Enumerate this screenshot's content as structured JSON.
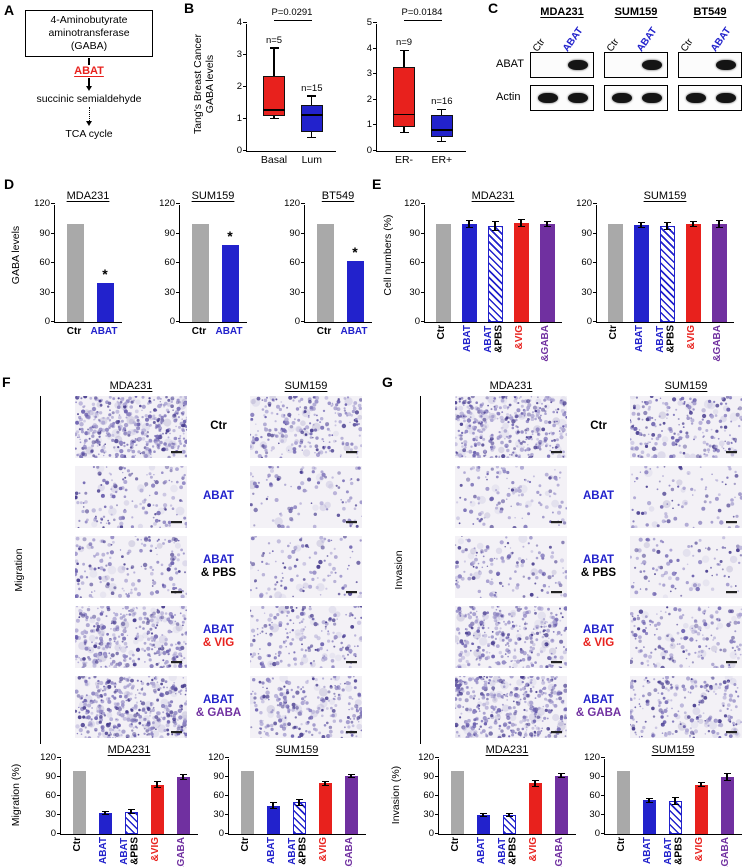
{
  "colors": {
    "gray": "#a9a9a9",
    "blue": "#2222cc",
    "red": "#e8211d",
    "purple": "#7030a0",
    "black": "#000000",
    "band": "#141414"
  },
  "panels": {
    "A": {
      "label": "A",
      "box_lines": [
        "4-Aminobutyrate",
        "aminotransferase",
        "(GABA)"
      ],
      "enzyme": "ABAT",
      "intermediate": "succinic semialdehyde",
      "terminal": "TCA cycle"
    },
    "B": {
      "label": "B",
      "ylabel_line1": "Tang's Breast Cancer",
      "ylabel_line2": "GABA levels"
    },
    "C": {
      "label": "C",
      "cell_lines": [
        "MDA231",
        "SUM159",
        "BT549"
      ],
      "lane_labels": [
        "Ctr",
        "ABAT"
      ],
      "row_labels": [
        "ABAT",
        "Actin"
      ],
      "abat_bands": [
        [
          false,
          true
        ],
        [
          false,
          true
        ],
        [
          false,
          true
        ]
      ],
      "actin_bands": [
        [
          true,
          true
        ],
        [
          true,
          true
        ],
        [
          true,
          true
        ]
      ]
    },
    "D": {
      "label": "D",
      "ylabel": "GABA levels"
    },
    "E": {
      "label": "E",
      "ylabel": "Cell numbers (%)"
    },
    "F": {
      "label": "F",
      "side_label": "Migration",
      "ylabel": "Migration (%)",
      "col_headers": [
        "MDA231",
        "SUM159"
      ],
      "rows": [
        {
          "lines": [
            [
              {
                "t": "Ctr",
                "c": "black"
              }
            ]
          ],
          "densities": [
            420,
            230
          ]
        },
        {
          "lines": [
            [
              {
                "t": "ABAT",
                "c": "blue"
              }
            ]
          ],
          "densities": [
            150,
            100
          ]
        },
        {
          "lines": [
            [
              {
                "t": "ABAT",
                "c": "blue"
              }
            ],
            [
              {
                "t": "& PBS",
                "c": "black"
              }
            ]
          ],
          "densities": [
            160,
            110
          ]
        },
        {
          "lines": [
            [
              {
                "t": "ABAT",
                "c": "blue"
              }
            ],
            [
              {
                "t": "& VIG",
                "c": "red"
              }
            ]
          ],
          "densities": [
            330,
            190
          ]
        },
        {
          "lines": [
            [
              {
                "t": "ABAT",
                "c": "blue"
              }
            ],
            [
              {
                "t": "& GABA",
                "c": "purple"
              }
            ]
          ],
          "densities": [
            400,
            230
          ]
        }
      ]
    },
    "G": {
      "label": "G",
      "side_label": "Invasion",
      "ylabel": "Invasion (%)",
      "col_headers": [
        "MDA231",
        "SUM159"
      ],
      "rows": [
        {
          "lines": [
            [
              {
                "t": "Ctr",
                "c": "black"
              }
            ]
          ],
          "densities": [
            380,
            210
          ]
        },
        {
          "lines": [
            [
              {
                "t": "ABAT",
                "c": "blue"
              }
            ]
          ],
          "densities": [
            120,
            90
          ]
        },
        {
          "lines": [
            [
              {
                "t": "ABAT",
                "c": "blue"
              }
            ],
            [
              {
                "t": "& PBS",
                "c": "black"
              }
            ]
          ],
          "densities": [
            130,
            100
          ]
        },
        {
          "lines": [
            [
              {
                "t": "ABAT",
                "c": "blue"
              }
            ],
            [
              {
                "t": "& VIG",
                "c": "red"
              }
            ]
          ],
          "densities": [
            310,
            170
          ]
        },
        {
          "lines": [
            [
              {
                "t": "ABAT",
                "c": "blue"
              }
            ],
            [
              {
                "t": "& GABA",
                "c": "purple"
              }
            ]
          ],
          "densities": [
            370,
            210
          ]
        }
      ]
    }
  },
  "category_sets": {
    "cat2": [
      {
        "lines": [
          [
            {
              "t": "Ctr",
              "c": "black"
            }
          ]
        ]
      },
      {
        "lines": [
          [
            {
              "t": "ABAT",
              "c": "blue"
            }
          ]
        ]
      }
    ],
    "cat5": [
      {
        "lines": [
          [
            {
              "t": "Ctr",
              "c": "black"
            }
          ]
        ]
      },
      {
        "lines": [
          [
            {
              "t": "ABAT",
              "c": "blue"
            }
          ]
        ]
      },
      {
        "lines": [
          [
            {
              "t": "ABAT",
              "c": "blue"
            }
          ],
          [
            {
              "t": "&PBS",
              "c": "black"
            }
          ]
        ]
      },
      {
        "lines": [
          [
            {
              "t": "&VIG",
              "c": "red"
            }
          ]
        ]
      },
      {
        "lines": [
          [
            {
              "t": "&GABA",
              "c": "purple"
            }
          ]
        ]
      }
    ]
  },
  "chart_data": [
    {
      "id": "B_basal_lum",
      "type": "box",
      "p_label": "P=0.0291",
      "ylim": [
        0,
        4
      ],
      "yticks": [
        0,
        1,
        2,
        3,
        4
      ],
      "groups": [
        {
          "label": "Basal",
          "n_label": "n=5",
          "color": "red",
          "whisker_low": 1.0,
          "q1": 1.1,
          "median": 1.25,
          "q3": 2.35,
          "whisker_high": 3.2
        },
        {
          "label": "Lum",
          "n_label": "n=15",
          "color": "blue",
          "whisker_low": 0.4,
          "q1": 0.6,
          "median": 1.1,
          "q3": 1.45,
          "whisker_high": 1.7
        }
      ]
    },
    {
      "id": "B_er",
      "type": "box",
      "p_label": "P=0.0184",
      "ylim": [
        0,
        5
      ],
      "yticks": [
        0,
        1,
        2,
        3,
        4,
        5
      ],
      "groups": [
        {
          "label": "ER-",
          "n_label": "n=9",
          "color": "red",
          "whisker_low": 0.7,
          "q1": 0.95,
          "median": 1.4,
          "q3": 3.3,
          "whisker_high": 3.9
        },
        {
          "label": "ER+",
          "n_label": "n=16",
          "color": "blue",
          "whisker_low": 0.35,
          "q1": 0.55,
          "median": 0.8,
          "q3": 1.4,
          "whisker_high": 1.6
        }
      ]
    },
    {
      "id": "D_MDA231",
      "type": "bar",
      "title": "MDA231",
      "ylabel": "GABA levels",
      "ylim": [
        0,
        120
      ],
      "yticks": [
        0,
        30,
        60,
        90,
        120
      ],
      "categories": "cat2",
      "values": [
        100,
        40
      ],
      "styles": [
        "gray",
        "blue"
      ],
      "errors": [
        0,
        0
      ],
      "annotations": [
        null,
        "*"
      ],
      "rotate_xlabels": false
    },
    {
      "id": "D_SUM159",
      "type": "bar",
      "title": "SUM159",
      "ylabel": "GABA levels",
      "ylim": [
        0,
        120
      ],
      "yticks": [
        0,
        30,
        60,
        90,
        120
      ],
      "categories": "cat2",
      "values": [
        100,
        78
      ],
      "styles": [
        "gray",
        "blue"
      ],
      "errors": [
        0,
        0
      ],
      "annotations": [
        null,
        "*"
      ],
      "rotate_xlabels": false
    },
    {
      "id": "D_BT549",
      "type": "bar",
      "title": "BT549",
      "ylabel": "GABA levels",
      "ylim": [
        0,
        120
      ],
      "yticks": [
        0,
        30,
        60,
        90,
        120
      ],
      "categories": "cat2",
      "values": [
        100,
        62
      ],
      "styles": [
        "gray",
        "blue"
      ],
      "errors": [
        0,
        0
      ],
      "annotations": [
        null,
        "*"
      ],
      "rotate_xlabels": false
    },
    {
      "id": "E_MDA231",
      "type": "bar",
      "title": "MDA231",
      "ylabel": "Cell numbers (%)",
      "ylim": [
        0,
        120
      ],
      "yticks": [
        0,
        30,
        60,
        90,
        120
      ],
      "categories": "cat5",
      "values": [
        100,
        100,
        98,
        101,
        100
      ],
      "styles": [
        "gray",
        "blue",
        "hatch",
        "red",
        "purple"
      ],
      "errors": [
        0,
        4,
        5,
        4,
        3
      ],
      "rotate_xlabels": true
    },
    {
      "id": "E_SUM159",
      "type": "bar",
      "title": "SUM159",
      "ylabel": "Cell numbers (%)",
      "ylim": [
        0,
        120
      ],
      "yticks": [
        0,
        30,
        60,
        90,
        120
      ],
      "categories": "cat5",
      "values": [
        100,
        99,
        98,
        100,
        100
      ],
      "styles": [
        "gray",
        "blue",
        "hatch",
        "red",
        "purple"
      ],
      "errors": [
        0,
        3,
        4,
        3,
        4
      ],
      "rotate_xlabels": true
    },
    {
      "id": "F_MDA231",
      "type": "bar",
      "title": "MDA231",
      "ylabel": "Migration (%)",
      "ylim": [
        0,
        120
      ],
      "yticks": [
        0,
        30,
        60,
        90,
        120
      ],
      "categories": "cat5",
      "values": [
        100,
        33,
        35,
        78,
        90
      ],
      "styles": [
        "gray",
        "blue",
        "hatch",
        "red",
        "purple"
      ],
      "errors": [
        0,
        3,
        4,
        6,
        4
      ],
      "rotate_xlabels": true
    },
    {
      "id": "F_SUM159",
      "type": "bar",
      "title": "SUM159",
      "ylabel": "Migration (%)",
      "ylim": [
        0,
        120
      ],
      "yticks": [
        0,
        30,
        60,
        90,
        120
      ],
      "categories": "cat5",
      "values": [
        100,
        45,
        50,
        80,
        92
      ],
      "styles": [
        "gray",
        "blue",
        "hatch",
        "red",
        "purple"
      ],
      "errors": [
        0,
        5,
        6,
        4,
        3
      ],
      "rotate_xlabels": true
    },
    {
      "id": "G_MDA231",
      "type": "bar",
      "title": "MDA231",
      "ylabel": "Invasion (%)",
      "ylim": [
        0,
        120
      ],
      "yticks": [
        0,
        30,
        60,
        90,
        120
      ],
      "categories": "cat5",
      "values": [
        100,
        30,
        30,
        80,
        92
      ],
      "styles": [
        "gray",
        "blue",
        "hatch",
        "red",
        "purple"
      ],
      "errors": [
        0,
        3,
        3,
        5,
        4
      ],
      "rotate_xlabels": true
    },
    {
      "id": "G_SUM159",
      "type": "bar",
      "title": "SUM159",
      "ylabel": "Invasion (%)",
      "ylim": [
        0,
        120
      ],
      "yticks": [
        0,
        30,
        60,
        90,
        120
      ],
      "categories": "cat5",
      "values": [
        100,
        53,
        52,
        78,
        90
      ],
      "styles": [
        "gray",
        "blue",
        "hatch",
        "red",
        "purple"
      ],
      "errors": [
        0,
        4,
        6,
        4,
        6
      ],
      "rotate_xlabels": true
    }
  ]
}
